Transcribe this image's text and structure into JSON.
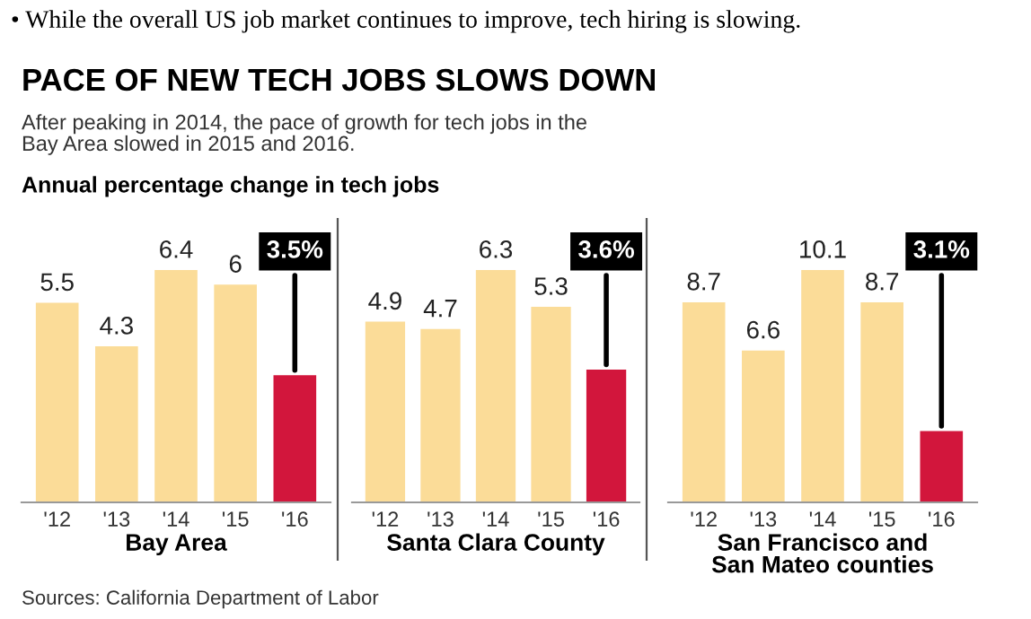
{
  "chart_data": [
    {
      "type": "bar",
      "title": "PACE OF NEW TECH JOBS SLOWS DOWN",
      "subtitle": "After peaking in 2014, the pace of growth for tech jobs in the\nBay Area slowed in 2015 and 2016.",
      "annotations": [
        "• While the overall US job market continues to improve, tech hiring is slowing.",
        "Annual percentage change in tech jobs",
        "Sources: California Department of Labor"
      ],
      "xlabel": "Bay Area",
      "categories": [
        "'12",
        "'13",
        "'14",
        "'15",
        "'16"
      ],
      "values": [
        5.5,
        4.3,
        6.4,
        6,
        3.5
      ],
      "value_labels": [
        "5.5",
        "4.3",
        "6.4",
        "6",
        "3.5%"
      ],
      "colors": [
        "#fbdc98",
        "#fbdc98",
        "#fbdc98",
        "#fbdc98",
        "#d2163c"
      ]
    },
    {
      "type": "bar",
      "xlabel": "Santa Clara County",
      "categories": [
        "'12",
        "'13",
        "'14",
        "'15",
        "'16"
      ],
      "values": [
        4.9,
        4.7,
        6.3,
        5.3,
        3.6
      ],
      "value_labels": [
        "4.9",
        "4.7",
        "6.3",
        "5.3",
        "3.6%"
      ],
      "colors": [
        "#fbdc98",
        "#fbdc98",
        "#fbdc98",
        "#fbdc98",
        "#d2163c"
      ]
    },
    {
      "type": "bar",
      "xlabel": "San Francisco and\nSan Mateo counties",
      "categories": [
        "'12",
        "'13",
        "'14",
        "'15",
        "'16"
      ],
      "values": [
        8.7,
        6.6,
        10.1,
        8.7,
        3.1
      ],
      "value_labels": [
        "8.7",
        "6.6",
        "10.1",
        "8.7",
        "3.1%"
      ],
      "colors": [
        "#fbdc98",
        "#fbdc98",
        "#fbdc98",
        "#fbdc98",
        "#d2163c"
      ]
    }
  ]
}
